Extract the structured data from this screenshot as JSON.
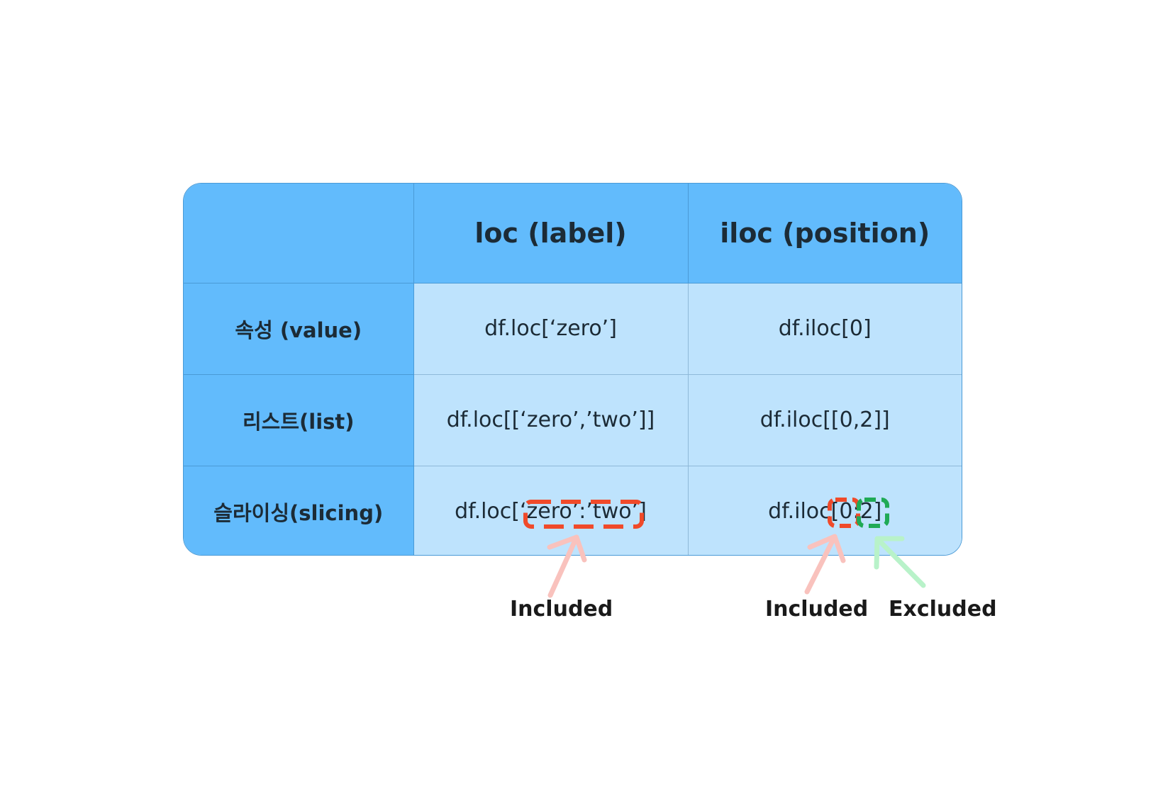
{
  "table": {
    "header": {
      "corner": "",
      "loc": "loc (label)",
      "iloc": "iloc (position)"
    },
    "rows": [
      {
        "label": "속성 (value)",
        "loc": "df.loc[‘zero’]",
        "iloc": "df.iloc[0]"
      },
      {
        "label": "리스트(list)",
        "loc": "df.loc[[‘zero’,’two’]]",
        "iloc": "df.iloc[[0,2]]"
      },
      {
        "label": "슬라이싱(slicing)",
        "loc": "df.loc[‘zero’:’two’]",
        "iloc": "df.iloc[0:2]"
      }
    ]
  },
  "annotations": {
    "loc_included": "Included",
    "iloc_included": "Included",
    "iloc_excluded": "Excluded"
  },
  "colors": {
    "header_bg": "#62bbfc",
    "cell_bg": "#bee3fd",
    "border": "#4a9ad6",
    "included_box": "#f04a2a",
    "excluded_box": "#1faa55",
    "included_arrow": "#f9c2bd",
    "excluded_arrow": "#b8f2c9"
  }
}
